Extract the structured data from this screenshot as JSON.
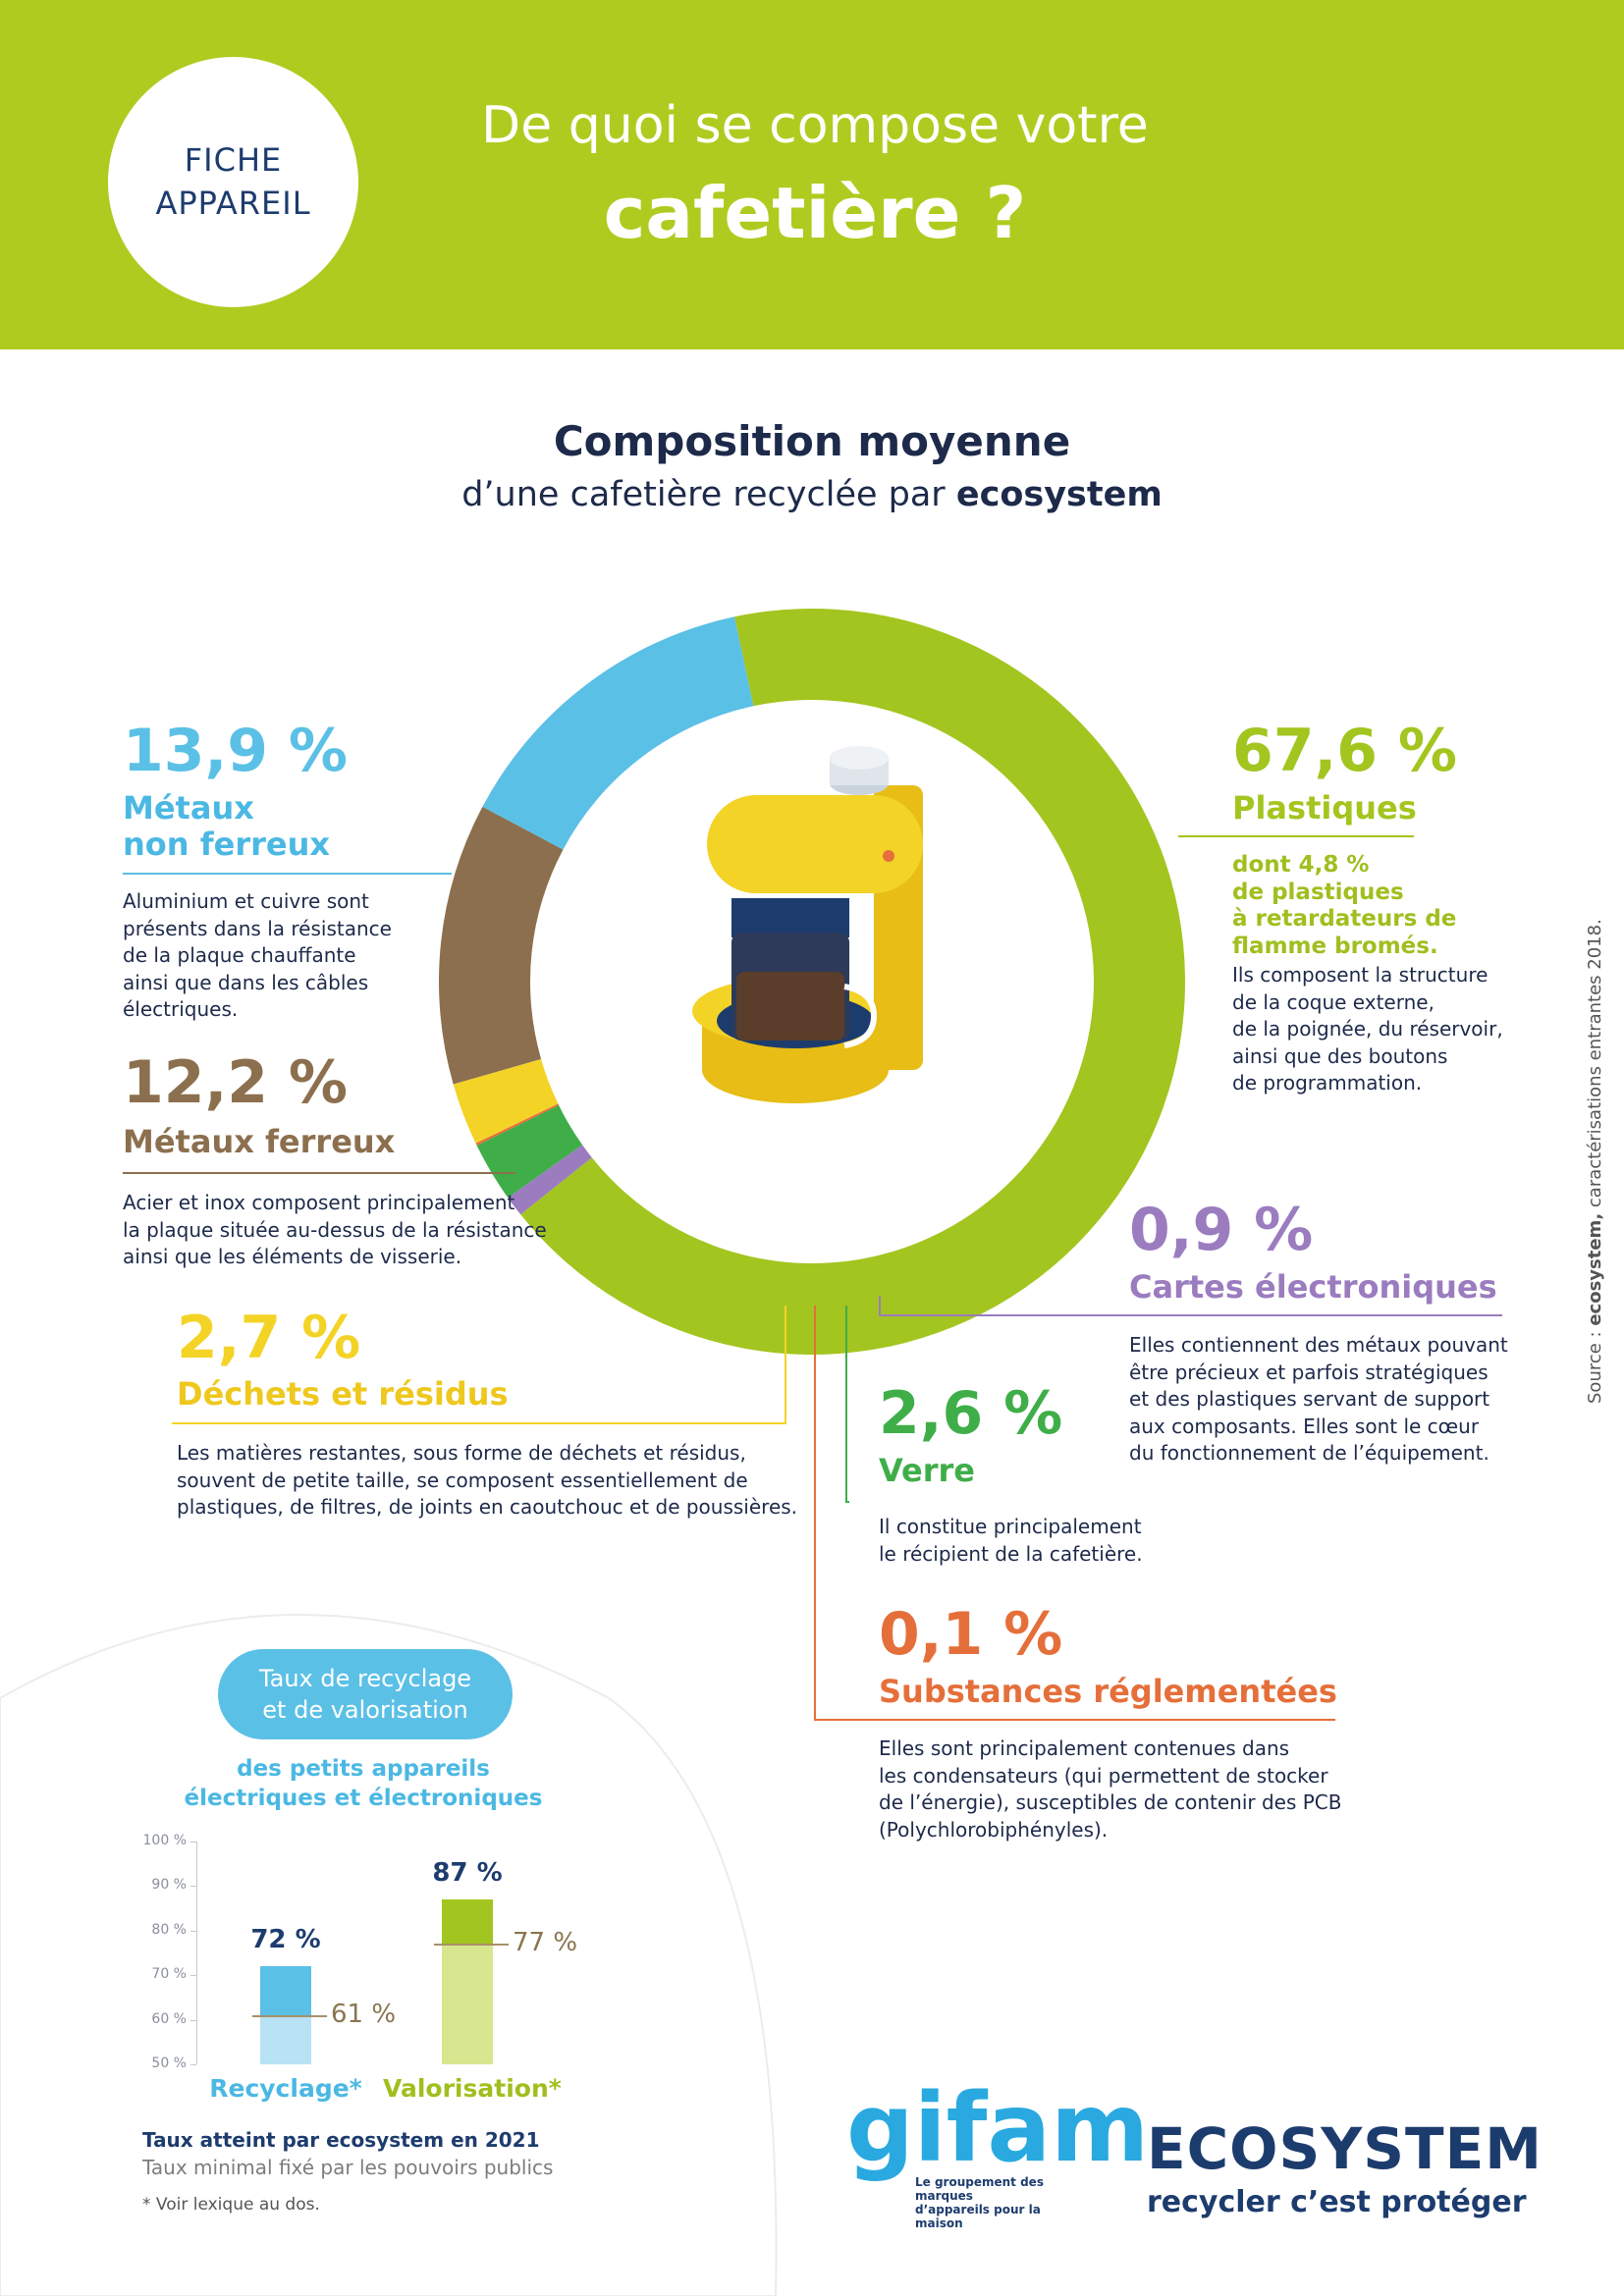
{
  "header": {
    "badge_line1": "FICHE",
    "badge_line2": "APPAREIL",
    "title_line1": "De quoi se compose votre",
    "title_line2": "cafetière ?"
  },
  "composition": {
    "title": "Composition moyenne",
    "subtitle_prefix": "d’une cafetière recyclée par",
    "subtitle_brand": "ecosystem"
  },
  "colors": {
    "header_green": "#b0cb1f",
    "plastiques": "#a3c51f",
    "metaux_non_ferreux": "#5bc0e6",
    "metaux_ferreux": "#8c6f4e",
    "dechets": "#f4d327",
    "verre": "#3fae49",
    "cartes": "#9b7cbf",
    "substances": "#e56f3a"
  },
  "chart_data": [
    {
      "type": "pie",
      "title": "Composition moyenne",
      "slices": [
        {
          "key": "plastiques",
          "value": 67.6,
          "pct_label": "67,6 %",
          "label": "Plastiques",
          "color": "#a3c51f",
          "note": [
            "dont 4,8 %",
            "de plastiques",
            "à retardateurs de",
            "flamme bromés."
          ],
          "desc": [
            "Ils composent la structure",
            "de la coque externe,",
            "de la poignée, du réservoir,",
            "ainsi que des boutons",
            "de programmation."
          ]
        },
        {
          "key": "cartes",
          "value": 0.9,
          "pct_label": "0,9 %",
          "label": "Cartes électroniques",
          "color": "#9b7cbf",
          "desc": [
            "Elles contiennent des métaux pouvant",
            "être précieux et parfois stratégiques",
            "et des plastiques servant de support",
            "aux composants. Elles sont le cœur",
            "du fonctionnement de l’équipement."
          ]
        },
        {
          "key": "verre",
          "value": 2.6,
          "pct_label": "2,6 %",
          "label": "Verre",
          "color": "#3fae49",
          "desc": [
            "Il constitue principalement",
            "le récipient de la cafetière."
          ]
        },
        {
          "key": "substances",
          "value": 0.1,
          "pct_label": "0,1 %",
          "label": "Substances réglementées",
          "color": "#e56f3a",
          "desc": [
            "Elles sont principalement contenues dans",
            "les condensateurs (qui permettent de stocker",
            "de l’énergie), susceptibles de contenir des PCB",
            "(Polychlorobiphényles)."
          ]
        },
        {
          "key": "dechets",
          "value": 2.7,
          "pct_label": "2,7 %",
          "label": "Déchets et résidus",
          "color": "#f4d327",
          "desc": [
            "Les matières restantes, sous forme de déchets et résidus,",
            "souvent de petite taille, se composent essentiellement de",
            "plastiques, de filtres, de joints en caoutchouc et de poussières."
          ]
        },
        {
          "key": "metaux_ferreux",
          "value": 12.2,
          "pct_label": "12,2 %",
          "label": "Métaux ferreux",
          "color": "#8c6f4e",
          "desc": [
            "Acier et inox composent principalement",
            "la plaque située au-dessus de la résistance",
            "ainsi que les éléments de visserie."
          ]
        },
        {
          "key": "metaux_non_ferreux",
          "value": 13.9,
          "pct_label": "13,9 %",
          "label": "Métaux\nnon ferreux",
          "color": "#5bc0e6",
          "desc": [
            "Aluminium et cuivre sont",
            "présents dans la résistance",
            "de la plaque chauffante",
            "ainsi que dans les câbles",
            "électriques."
          ]
        }
      ]
    },
    {
      "type": "bar",
      "title": "Taux de recyclage et de valorisation",
      "categories": [
        "Recyclage*",
        "Valorisation*"
      ],
      "series": [
        {
          "name": "Taux atteint par ecosystem en 2021",
          "values": [
            72,
            87
          ]
        },
        {
          "name": "Taux minimal fixé par les pouvoirs publics",
          "values": [
            61,
            77
          ]
        }
      ],
      "value_labels": [
        "72 %",
        "87 %"
      ],
      "min_labels": [
        "61 %",
        "77 %"
      ],
      "ylim": [
        50,
        100
      ],
      "yticks": [
        "100 %",
        "90 %",
        "80 %",
        "70 %",
        "60 %",
        "50 %"
      ],
      "ytick_values": [
        100,
        90,
        80,
        70,
        60,
        50
      ],
      "bar_colors": [
        [
          "#5bc0e6",
          "#b7e3f4"
        ],
        [
          "#a3c51f",
          "#d8e68f"
        ]
      ],
      "label_colors": [
        "#4bb8e3",
        "#9fbf1e"
      ]
    }
  ],
  "rates": {
    "pill_line1": "Taux de recyclage",
    "pill_line2": "et de valorisation",
    "sub_line1": "des petits appareils",
    "sub_line2": "électriques et électroniques",
    "legend_achieved_prefix": "Taux atteint par",
    "legend_achieved_brand": "ecosystem",
    "legend_achieved_suffix": "en 2021",
    "legend_minimum": "Taux minimal fixé par les pouvoirs publics",
    "footnote": "* Voir lexique au dos."
  },
  "logos": {
    "gifam_name": "gifam",
    "gifam_tagline_1": "Le groupement des marques",
    "gifam_tagline_2": "d’appareils pour la maison",
    "ecosystem_name": "ECOSYSTEM",
    "ecosystem_tagline": "recycler c’est protéger"
  },
  "source": {
    "prefix": "Source :",
    "brand": "ecosystem,",
    "suffix": "caractérisations entrantes 2018."
  }
}
